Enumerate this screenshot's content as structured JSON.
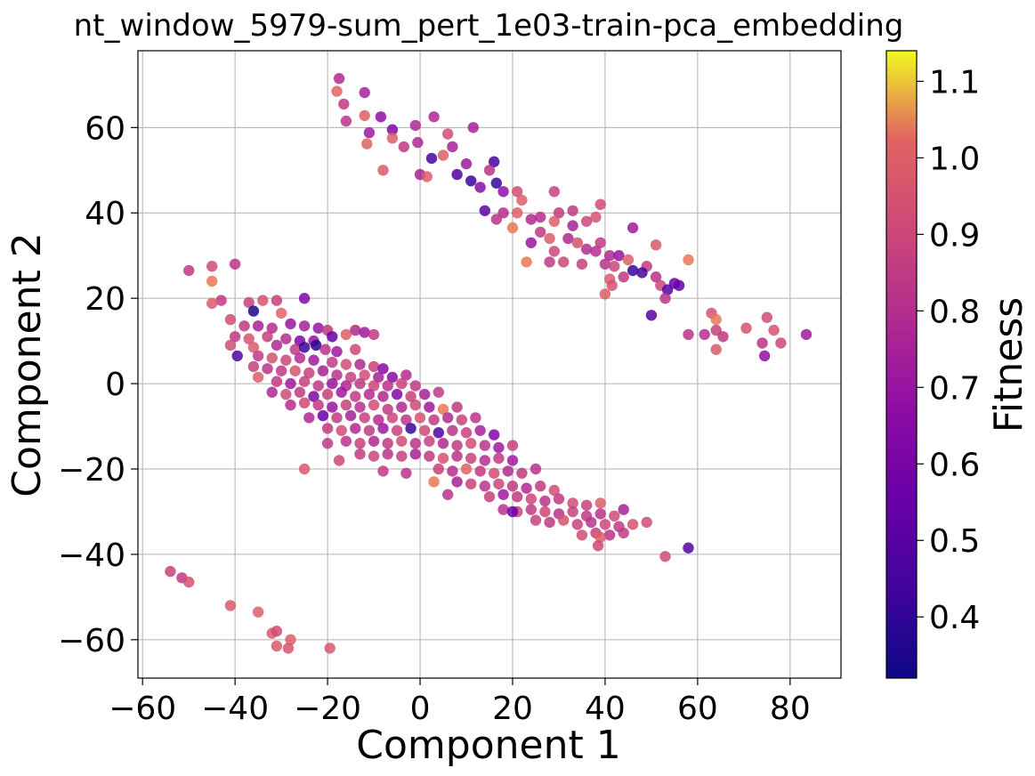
{
  "chart_data": {
    "type": "scatter",
    "title": "nt_window_5979-sum_pert_1e03-train-pca_embedding",
    "xlabel": "Component 1",
    "ylabel": "Component 2",
    "xlim": [
      -61,
      91
    ],
    "ylim": [
      -69,
      78
    ],
    "xticks": [
      -60,
      -40,
      -20,
      0,
      20,
      40,
      60,
      80
    ],
    "yticks": [
      -60,
      -40,
      -20,
      0,
      20,
      40,
      60
    ],
    "xtick_labels": [
      "−60",
      "−40",
      "−20",
      "0",
      "20",
      "40",
      "60",
      "80"
    ],
    "ytick_labels": [
      "−60",
      "−40",
      "−20",
      "0",
      "20",
      "40",
      "60"
    ],
    "grid": true,
    "colormap": "plasma",
    "colorbar": {
      "label": "Fitness",
      "range": [
        0.32,
        1.14
      ],
      "ticks": [
        0.4,
        0.5,
        0.6,
        0.7,
        0.8,
        0.9,
        1.0,
        1.1
      ],
      "tick_labels": [
        "0.4",
        "0.5",
        "0.6",
        "0.7",
        "0.8",
        "0.9",
        "1.0",
        "1.1"
      ]
    },
    "points": [
      [
        -17.5,
        71.5,
        0.78
      ],
      [
        -18,
        68.5,
        1.02
      ],
      [
        -12,
        68.2,
        0.75
      ],
      [
        -16.5,
        65.5,
        0.85
      ],
      [
        -16,
        61.5,
        0.82
      ],
      [
        -12,
        62.8,
        1.0
      ],
      [
        -8.5,
        62.5,
        0.68
      ],
      [
        3,
        62.5,
        0.78
      ],
      [
        11.5,
        60,
        0.75
      ],
      [
        -6,
        59.5,
        0.62
      ],
      [
        -11,
        58.8,
        0.72
      ],
      [
        -1,
        60.5,
        0.78
      ],
      [
        6,
        58.5,
        0.92
      ],
      [
        -6,
        57.5,
        1.0
      ],
      [
        -0.5,
        56.5,
        0.78
      ],
      [
        -11.5,
        56.2,
        1.02
      ],
      [
        -3.5,
        55.5,
        0.85
      ],
      [
        5,
        53.5,
        1.0
      ],
      [
        7,
        55.5,
        0.75
      ],
      [
        2.5,
        52.8,
        0.45
      ],
      [
        16,
        52,
        0.45
      ],
      [
        10,
        51.5,
        0.72
      ],
      [
        15,
        50,
        0.82
      ],
      [
        -8,
        50,
        0.98
      ],
      [
        0,
        49,
        0.75
      ],
      [
        1.5,
        48.5,
        1.0
      ],
      [
        8,
        49,
        0.48
      ],
      [
        11,
        47.5,
        0.42
      ],
      [
        16.5,
        47,
        0.42
      ],
      [
        13,
        46,
        0.65
      ],
      [
        18,
        45,
        0.68
      ],
      [
        21,
        45,
        0.92
      ],
      [
        29,
        45,
        0.88
      ],
      [
        22,
        43,
        1.0
      ],
      [
        14,
        40.5,
        0.52
      ],
      [
        18,
        40,
        0.8
      ],
      [
        21,
        40,
        1.0
      ],
      [
        26,
        39,
        0.8
      ],
      [
        30,
        40,
        0.85
      ],
      [
        33,
        40.5,
        0.85
      ],
      [
        38,
        39,
        0.95
      ],
      [
        39,
        42,
        0.92
      ],
      [
        24,
        38.5,
        0.78
      ],
      [
        16.5,
        38.5,
        0.82
      ],
      [
        29,
        38,
        1.0
      ],
      [
        20,
        36.5,
        1.05
      ],
      [
        33,
        37,
        0.75
      ],
      [
        36,
        38,
        0.9
      ],
      [
        26,
        35.5,
        0.85
      ],
      [
        28,
        34,
        1.0
      ],
      [
        32,
        34,
        0.78
      ],
      [
        34,
        33,
        0.95
      ],
      [
        39,
        33,
        0.85
      ],
      [
        36,
        31.5,
        0.8
      ],
      [
        29,
        31,
        0.9
      ],
      [
        38,
        31,
        0.8
      ],
      [
        24,
        33,
        0.7
      ],
      [
        41,
        30,
        0.78
      ],
      [
        43,
        30,
        0.7
      ],
      [
        46,
        36.5,
        0.72
      ],
      [
        51,
        32.5,
        0.98
      ],
      [
        45,
        29,
        1.0
      ],
      [
        40,
        28,
        0.82
      ],
      [
        42,
        27.5,
        0.9
      ],
      [
        49,
        27.5,
        0.85
      ],
      [
        23,
        28.5,
        1.05
      ],
      [
        28,
        28.5,
        0.85
      ],
      [
        31,
        28.5,
        0.9
      ],
      [
        35,
        28,
        0.88
      ],
      [
        46,
        26.5,
        0.42
      ],
      [
        48,
        26,
        0.45
      ],
      [
        51,
        25,
        0.82
      ],
      [
        55,
        23.5,
        0.55
      ],
      [
        52,
        23,
        0.9
      ],
      [
        53.5,
        22,
        0.5
      ],
      [
        56,
        23,
        0.55
      ],
      [
        41,
        24.5,
        0.98
      ],
      [
        44,
        25,
        0.85
      ],
      [
        41.5,
        23,
        0.95
      ],
      [
        40,
        21,
        1.0
      ],
      [
        53,
        20,
        0.82
      ],
      [
        58,
        29,
        1.05
      ],
      [
        50,
        16,
        0.5
      ],
      [
        63,
        16.5,
        0.95
      ],
      [
        64,
        15,
        1.05
      ],
      [
        64,
        12.5,
        0.88
      ],
      [
        65.5,
        11,
        0.85
      ],
      [
        61.5,
        11.5,
        0.8
      ],
      [
        58,
        11.5,
        0.82
      ],
      [
        70.5,
        13,
        0.95
      ],
      [
        75,
        15.5,
        0.92
      ],
      [
        76.5,
        12.5,
        0.95
      ],
      [
        74,
        9.5,
        0.82
      ],
      [
        78,
        9.5,
        0.9
      ],
      [
        74.5,
        6.5,
        0.68
      ],
      [
        83.5,
        11.5,
        0.72
      ],
      [
        64,
        8,
        0.98
      ],
      [
        -50,
        26.5,
        0.85
      ],
      [
        -45,
        27.5,
        0.92
      ],
      [
        -40,
        28,
        0.82
      ],
      [
        -45,
        24,
        1.05
      ],
      [
        -43,
        19.5,
        0.85
      ],
      [
        -45,
        18.8,
        0.98
      ],
      [
        -37,
        19,
        0.88
      ],
      [
        -34,
        19.5,
        0.95
      ],
      [
        -31,
        19.5,
        0.88
      ],
      [
        -25,
        20,
        0.62
      ],
      [
        -36,
        17,
        0.35
      ],
      [
        -30,
        16.5,
        1.02
      ],
      [
        -41,
        15,
        0.92
      ],
      [
        -38,
        13.5,
        0.85
      ],
      [
        -35,
        13.5,
        0.75
      ],
      [
        -32,
        13,
        0.8
      ],
      [
        -28,
        14,
        0.7
      ],
      [
        -25,
        13.5,
        0.75
      ],
      [
        -22,
        13,
        0.7
      ],
      [
        -20,
        12.5,
        0.85
      ],
      [
        -14,
        12.5,
        0.78
      ],
      [
        -12,
        12,
        0.72
      ],
      [
        -40,
        11,
        0.85
      ],
      [
        -37,
        10.5,
        0.95
      ],
      [
        -33,
        11,
        0.88
      ],
      [
        -29,
        10.5,
        0.8
      ],
      [
        -26,
        10,
        0.62
      ],
      [
        -23,
        10,
        0.7
      ],
      [
        -19,
        11,
        0.55
      ],
      [
        -16,
        11.5,
        1.0
      ],
      [
        -10,
        11.5,
        0.85
      ],
      [
        -41,
        9,
        0.92
      ],
      [
        -36,
        8.5,
        0.98
      ],
      [
        -31,
        9,
        0.78
      ],
      [
        -27,
        8,
        0.85
      ],
      [
        -25,
        8.5,
        0.42
      ],
      [
        -22.5,
        9,
        0.38
      ],
      [
        -20.5,
        8,
        0.82
      ],
      [
        -18,
        7.5,
        0.72
      ],
      [
        -14,
        8,
        0.9
      ],
      [
        -39.5,
        6.5,
        0.48
      ],
      [
        -35,
        6.5,
        0.85
      ],
      [
        -32,
        6,
        0.95
      ],
      [
        -29,
        5.5,
        0.9
      ],
      [
        -26,
        6,
        0.8
      ],
      [
        -23,
        5.5,
        0.72
      ],
      [
        -19,
        5,
        0.85
      ],
      [
        -16,
        4.5,
        0.92
      ],
      [
        -13,
        4.5,
        0.78
      ],
      [
        -10,
        4,
        0.88
      ],
      [
        -8,
        3.5,
        0.65
      ],
      [
        -36,
        4,
        0.88
      ],
      [
        -33,
        3.5,
        0.82
      ],
      [
        -30,
        3,
        0.85
      ],
      [
        -27,
        3,
        0.95
      ],
      [
        -24,
        2.5,
        0.88
      ],
      [
        -21,
        3,
        0.75
      ],
      [
        -18,
        2,
        0.82
      ],
      [
        -15,
        1.5,
        0.88
      ],
      [
        -12,
        2,
        0.92
      ],
      [
        -9,
        1.5,
        0.75
      ],
      [
        -6,
        1.5,
        0.65
      ],
      [
        -3,
        2,
        0.8
      ],
      [
        -35,
        1.5,
        1.0
      ],
      [
        -31,
        0.5,
        0.85
      ],
      [
        -28,
        0,
        0.72
      ],
      [
        -25,
        0.5,
        0.88
      ],
      [
        -22,
        -0.5,
        0.85
      ],
      [
        -19,
        0,
        0.7
      ],
      [
        -16,
        -0.5,
        0.78
      ],
      [
        -13,
        0,
        0.85
      ],
      [
        -10,
        -0.5,
        0.9
      ],
      [
        -7,
        -0.5,
        0.82
      ],
      [
        -4,
        0,
        0.88
      ],
      [
        -1,
        -0.5,
        0.85
      ],
      [
        -32,
        -2,
        0.78
      ],
      [
        -29,
        -2.5,
        0.92
      ],
      [
        -26,
        -2,
        0.85
      ],
      [
        -23,
        -3,
        0.62
      ],
      [
        -20,
        -2.5,
        0.88
      ],
      [
        -17,
        -2,
        0.72
      ],
      [
        -14,
        -3,
        0.85
      ],
      [
        -11,
        -2.5,
        0.8
      ],
      [
        -8,
        -3,
        0.78
      ],
      [
        -5,
        -2.5,
        0.62
      ],
      [
        -2,
        -3,
        0.88
      ],
      [
        1,
        -2.5,
        0.75
      ],
      [
        4,
        -2,
        0.85
      ],
      [
        -28,
        -5,
        0.8
      ],
      [
        -25,
        -4.5,
        0.9
      ],
      [
        -22,
        -5,
        0.85
      ],
      [
        -19,
        -5.5,
        0.7
      ],
      [
        -16,
        -5,
        0.88
      ],
      [
        -13,
        -5.5,
        0.82
      ],
      [
        -10,
        -5,
        0.92
      ],
      [
        -7,
        -6,
        0.85
      ],
      [
        -4,
        -5.5,
        0.78
      ],
      [
        -1,
        -5,
        0.9
      ],
      [
        2,
        -5.5,
        0.72
      ],
      [
        5,
        -6,
        1.05
      ],
      [
        8,
        -5.5,
        0.85
      ],
      [
        -24,
        -8,
        0.78
      ],
      [
        -21,
        -7.5,
        0.55
      ],
      [
        -18,
        -8,
        0.85
      ],
      [
        -15,
        -7.5,
        0.75
      ],
      [
        -12,
        -8,
        0.88
      ],
      [
        -9,
        -8.5,
        0.8
      ],
      [
        -6,
        -8,
        0.9
      ],
      [
        -3,
        -8.5,
        0.82
      ],
      [
        0,
        -8,
        0.95
      ],
      [
        3,
        -8.5,
        0.85
      ],
      [
        6,
        -8,
        0.78
      ],
      [
        9,
        -8.5,
        0.88
      ],
      [
        12,
        -8,
        0.82
      ],
      [
        -20,
        -10.5,
        0.85
      ],
      [
        -17,
        -11,
        0.92
      ],
      [
        -14,
        -10.5,
        0.78
      ],
      [
        -11,
        -11,
        0.85
      ],
      [
        -8,
        -10.5,
        0.72
      ],
      [
        -5,
        -11,
        0.88
      ],
      [
        -2,
        -10.5,
        0.42
      ],
      [
        1,
        -11,
        0.9
      ],
      [
        4,
        -11.5,
        0.48
      ],
      [
        7,
        -11,
        0.82
      ],
      [
        10,
        -11.5,
        0.88
      ],
      [
        13,
        -11,
        0.75
      ],
      [
        16,
        -12,
        0.62
      ],
      [
        -16,
        -13.5,
        0.82
      ],
      [
        -13,
        -14,
        0.88
      ],
      [
        -10,
        -13.5,
        0.78
      ],
      [
        -7,
        -14,
        0.85
      ],
      [
        -4,
        -13.5,
        0.92
      ],
      [
        -1,
        -14,
        0.82
      ],
      [
        2,
        -13.5,
        0.88
      ],
      [
        5,
        -14,
        0.78
      ],
      [
        8,
        -14.5,
        0.85
      ],
      [
        11,
        -14,
        0.92
      ],
      [
        14,
        -14.5,
        0.82
      ],
      [
        17,
        -15,
        0.72
      ],
      [
        20,
        -14.5,
        0.88
      ],
      [
        -13,
        -16.5,
        0.85
      ],
      [
        -10,
        -17,
        0.9
      ],
      [
        -7,
        -16.5,
        0.82
      ],
      [
        -4,
        -17,
        0.88
      ],
      [
        -1,
        -16.5,
        0.75
      ],
      [
        2,
        -17,
        0.85
      ],
      [
        5,
        -17.5,
        0.95
      ],
      [
        8,
        -17,
        0.82
      ],
      [
        11,
        -17.5,
        0.88
      ],
      [
        14,
        -18,
        0.8
      ],
      [
        17,
        -17.5,
        0.85
      ],
      [
        20,
        -18,
        0.72
      ],
      [
        -20,
        -14,
        0.85
      ],
      [
        -17.5,
        -18,
        0.9
      ],
      [
        -25,
        -20,
        0.98
      ],
      [
        4,
        -20,
        0.88
      ],
      [
        7,
        -20.5,
        0.8
      ],
      [
        10,
        -20,
        1.02
      ],
      [
        13,
        -20.5,
        0.85
      ],
      [
        16,
        -21,
        0.92
      ],
      [
        19,
        -20.5,
        0.78
      ],
      [
        22,
        -21,
        0.85
      ],
      [
        25,
        -20,
        0.82
      ],
      [
        -8,
        -20.5,
        0.85
      ],
      [
        -3,
        -21,
        0.82
      ],
      [
        3,
        -23,
        1.05
      ],
      [
        8,
        -23,
        0.75
      ],
      [
        11,
        -23.5,
        0.88
      ],
      [
        14,
        -24,
        0.82
      ],
      [
        17,
        -23.5,
        0.9
      ],
      [
        20,
        -24,
        0.85
      ],
      [
        23,
        -24.5,
        0.78
      ],
      [
        26,
        -24,
        0.85
      ],
      [
        29,
        -25,
        0.92
      ],
      [
        6,
        -26,
        0.82
      ],
      [
        15,
        -26.5,
        0.88
      ],
      [
        18,
        -26,
        0.72
      ],
      [
        21,
        -26.5,
        0.85
      ],
      [
        24,
        -27,
        0.9
      ],
      [
        27,
        -27.5,
        0.82
      ],
      [
        30,
        -27,
        0.85
      ],
      [
        33,
        -28,
        0.92
      ],
      [
        36,
        -28.5,
        0.88
      ],
      [
        39,
        -28,
        1.0
      ],
      [
        18,
        -29.5,
        0.82
      ],
      [
        21,
        -30,
        0.88
      ],
      [
        24,
        -29.5,
        0.85
      ],
      [
        27,
        -30,
        0.9
      ],
      [
        30,
        -30.5,
        0.82
      ],
      [
        33,
        -30,
        0.88
      ],
      [
        36,
        -31,
        0.85
      ],
      [
        39,
        -30.5,
        0.82
      ],
      [
        42,
        -31,
        0.92
      ],
      [
        44,
        -29.5,
        0.75
      ],
      [
        20,
        -30,
        0.55
      ],
      [
        25,
        -32,
        0.88
      ],
      [
        28,
        -32.5,
        0.85
      ],
      [
        31,
        -32,
        0.95
      ],
      [
        34,
        -33,
        0.88
      ],
      [
        37,
        -32.5,
        0.82
      ],
      [
        40,
        -33,
        0.9
      ],
      [
        43,
        -33.5,
        0.85
      ],
      [
        46,
        -33,
        0.95
      ],
      [
        49,
        -32.5,
        0.92
      ],
      [
        35,
        -35.5,
        0.92
      ],
      [
        38,
        -35,
        0.88
      ],
      [
        41,
        -35.5,
        0.82
      ],
      [
        44,
        -35,
        0.85
      ],
      [
        39,
        -36,
        1.0
      ],
      [
        38.5,
        -38,
        0.9
      ],
      [
        53,
        -40.5,
        0.92
      ],
      [
        58,
        -38.5,
        0.5
      ],
      [
        -54,
        -44,
        0.88
      ],
      [
        -51.5,
        -45.5,
        0.85
      ],
      [
        -50,
        -46.5,
        0.95
      ],
      [
        -41,
        -52,
        0.98
      ],
      [
        -35,
        -53.5,
        1.0
      ],
      [
        -32,
        -58.5,
        0.98
      ],
      [
        -31,
        -58,
        0.92
      ],
      [
        -28,
        -60,
        1.0
      ],
      [
        -31,
        -61.5,
        0.98
      ],
      [
        -28.5,
        -62,
        0.95
      ],
      [
        -19.5,
        -62,
        0.98
      ]
    ]
  }
}
